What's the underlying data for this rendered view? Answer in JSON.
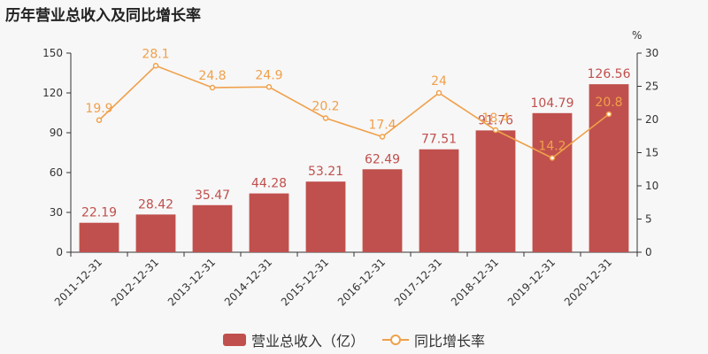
{
  "title": "历年营业总收入及同比增长率",
  "colors": {
    "bar": "#c0504d",
    "line": "#f0a04b",
    "axis": "#333333",
    "bar_label": "#c0504d",
    "line_label": "#f0a04b"
  },
  "chart_data": {
    "type": "bar",
    "categories": [
      "2011-12-31",
      "2012-12-31",
      "2013-12-31",
      "2014-12-31",
      "2015-12-31",
      "2016-12-31",
      "2017-12-31",
      "2018-12-31",
      "2019-12-31",
      "2020-12-31"
    ],
    "series": [
      {
        "name": "营业总收入（亿）",
        "type": "bar",
        "axis": "left",
        "values": [
          22.19,
          28.42,
          35.47,
          44.28,
          53.21,
          62.49,
          77.51,
          91.76,
          104.79,
          126.56
        ],
        "labels": [
          "22.19",
          "28.42",
          "35.47",
          "44.28",
          "53.21",
          "62.49",
          "77.51",
          "91.76",
          "104.79",
          "126.56"
        ]
      },
      {
        "name": "同比增长率",
        "type": "line",
        "axis": "right",
        "values": [
          19.9,
          28.1,
          24.8,
          24.9,
          20.2,
          17.4,
          24,
          18.4,
          14.2,
          20.8
        ],
        "labels": [
          "19.9",
          "28.1",
          "24.8",
          "24.9",
          "20.2",
          "17.4",
          "24",
          "18.4",
          "14.2",
          "20.8"
        ]
      }
    ],
    "y_left": {
      "ylim": [
        0,
        150
      ],
      "ticks": [
        "0",
        "30",
        "60",
        "90",
        "120",
        "150"
      ]
    },
    "y_right": {
      "ylim": [
        0,
        30
      ],
      "ticks": [
        "0",
        "5",
        "10",
        "15",
        "20",
        "25",
        "30"
      ],
      "unit": "%"
    },
    "legend": {
      "placement": "bottom",
      "items": [
        "营业总收入（亿）",
        "同比增长率"
      ]
    },
    "grid": false
  }
}
